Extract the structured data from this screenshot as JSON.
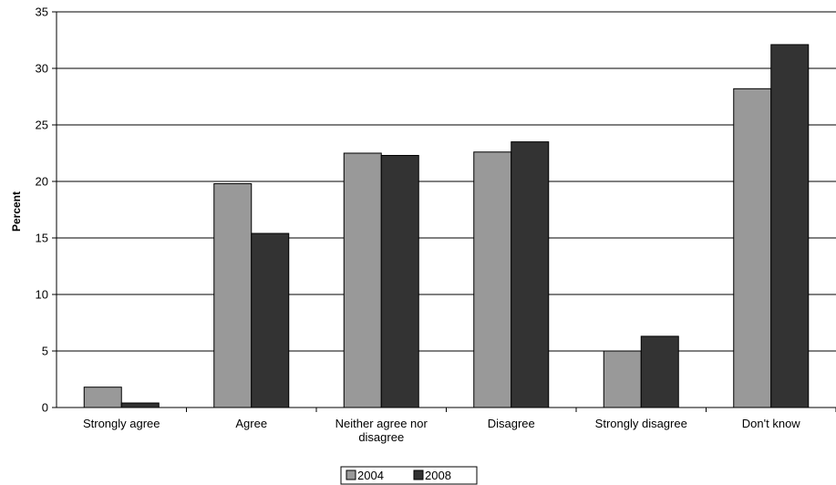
{
  "chart_data": {
    "type": "bar",
    "title": "",
    "xlabel": "",
    "ylabel": "Percent",
    "ylim": [
      0,
      35
    ],
    "yticks": [
      0,
      5,
      10,
      15,
      20,
      25,
      30,
      35
    ],
    "grid": true,
    "legend_position": "bottom",
    "categories": [
      [
        "Strongly agree"
      ],
      [
        "Agree"
      ],
      [
        "Neither agree nor",
        "disagree"
      ],
      [
        "Disagree"
      ],
      [
        "Strongly disagree"
      ],
      [
        "Don't know"
      ]
    ],
    "series": [
      {
        "name": "2004",
        "color": "#999999",
        "values": [
          1.8,
          19.8,
          22.5,
          22.6,
          5.0,
          28.2
        ]
      },
      {
        "name": "2008",
        "color": "#333333",
        "values": [
          0.4,
          15.4,
          22.3,
          23.5,
          6.3,
          32.1
        ]
      }
    ]
  }
}
